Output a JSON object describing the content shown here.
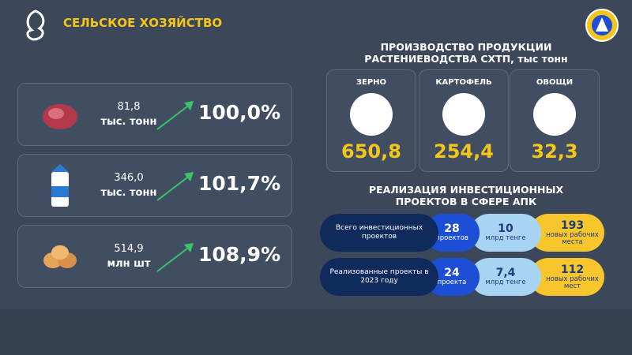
{
  "header": {
    "title": "СЕЛЬСКОЕ ХОЗЯЙСТВО"
  },
  "livestock": [
    {
      "amount": "81,8",
      "unit": "тыс. тонн",
      "growth": "100,0%"
    },
    {
      "amount": "346,0",
      "unit": "тыс. тонн",
      "growth": "101,7%"
    },
    {
      "amount": "514,9",
      "unit": "млн шт",
      "growth": "108,9%"
    }
  ],
  "crops": {
    "title": [
      "ПРОИЗВОДСТВО ПРОДУКЦИИ",
      "РАСТЕНИЕВОДСТВА СХТП, тыс тонн"
    ],
    "items": [
      {
        "name": "ЗЕРНО",
        "value": "650,8"
      },
      {
        "name": "КАРТОФЕЛЬ",
        "value": "254,4"
      },
      {
        "name": "ОВОЩИ",
        "value": "32,3"
      }
    ]
  },
  "investments": {
    "title": [
      "РЕАЛИЗАЦИЯ ИНВЕСТИЦИОННЫХ",
      "ПРОЕКТОВ В СФЕРЕ АПК"
    ],
    "rows": [
      {
        "label": "Всего инвестиционных проектов",
        "projects": {
          "value": "28",
          "unit": "проектов"
        },
        "money": {
          "value": "10",
          "unit": "млрд тенге"
        },
        "jobs": {
          "value": "193",
          "unit": "новых рабочих места"
        }
      },
      {
        "label": "Реализованные проекты в 2023 году",
        "projects": {
          "value": "24",
          "unit": "проекта"
        },
        "money": {
          "value": "7,4",
          "unit": "млрд тенге"
        },
        "jobs": {
          "value": "112",
          "unit": "новых рабочих мест"
        }
      }
    ]
  }
}
